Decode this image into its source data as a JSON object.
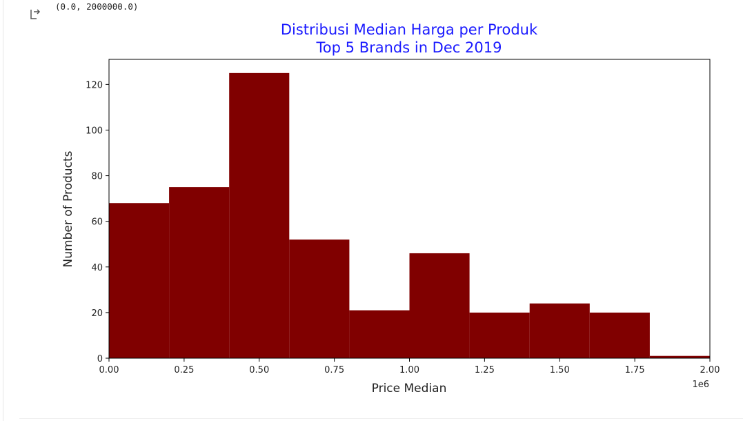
{
  "output": {
    "icon": "output-arrow-icon",
    "text": "(0.0, 2000000.0)"
  },
  "chart_data": {
    "type": "bar",
    "title": "Distribusi Median Harga per Produk",
    "subtitle": "Top 5 Brands in Dec 2019",
    "xlabel": "Price Median",
    "ylabel": "Number of Products",
    "x_offset_label": "1e6",
    "xlim": [
      0,
      2000000
    ],
    "ylim": [
      0,
      131
    ],
    "bar_color": "#800000",
    "title_color": "#1a1aff",
    "bins": [
      {
        "start": 0,
        "end": 200000,
        "value": 68
      },
      {
        "start": 200000,
        "end": 400000,
        "value": 75
      },
      {
        "start": 400000,
        "end": 600000,
        "value": 125
      },
      {
        "start": 600000,
        "end": 800000,
        "value": 52
      },
      {
        "start": 800000,
        "end": 1000000,
        "value": 21
      },
      {
        "start": 1000000,
        "end": 1200000,
        "value": 46
      },
      {
        "start": 1200000,
        "end": 1400000,
        "value": 20
      },
      {
        "start": 1400000,
        "end": 1600000,
        "value": 24
      },
      {
        "start": 1600000,
        "end": 1800000,
        "value": 20
      },
      {
        "start": 1800000,
        "end": 2000000,
        "value": 1
      }
    ],
    "x_ticks": [
      {
        "value": 0,
        "label": "0.00"
      },
      {
        "value": 250000,
        "label": "0.25"
      },
      {
        "value": 500000,
        "label": "0.50"
      },
      {
        "value": 750000,
        "label": "0.75"
      },
      {
        "value": 1000000,
        "label": "1.00"
      },
      {
        "value": 1250000,
        "label": "1.25"
      },
      {
        "value": 1500000,
        "label": "1.50"
      },
      {
        "value": 1750000,
        "label": "1.75"
      },
      {
        "value": 2000000,
        "label": "2.00"
      }
    ],
    "y_ticks": [
      {
        "value": 0,
        "label": "0"
      },
      {
        "value": 20,
        "label": "20"
      },
      {
        "value": 40,
        "label": "40"
      },
      {
        "value": 60,
        "label": "60"
      },
      {
        "value": 80,
        "label": "80"
      },
      {
        "value": 100,
        "label": "100"
      },
      {
        "value": 120,
        "label": "120"
      }
    ],
    "grid": false,
    "legend": "none"
  }
}
